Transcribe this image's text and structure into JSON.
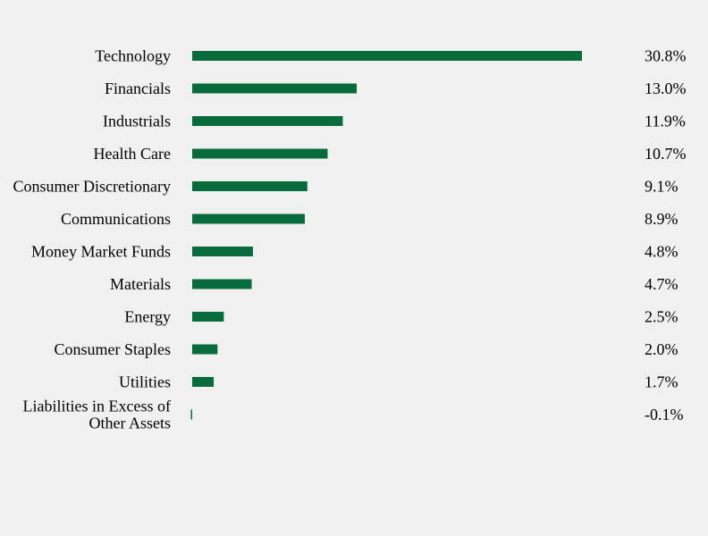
{
  "chart_data": {
    "type": "bar",
    "orientation": "horizontal",
    "categories": [
      "Technology",
      "Financials",
      "Industrials",
      "Health Care",
      "Consumer Discretionary",
      "Communications",
      "Money Market Funds",
      "Materials",
      "Energy",
      "Consumer Staples",
      "Utilities",
      "Liabilities in Excess of Other Assets"
    ],
    "values": [
      30.8,
      13.0,
      11.9,
      10.7,
      9.1,
      8.9,
      4.8,
      4.7,
      2.5,
      2.0,
      1.7,
      -0.1
    ],
    "value_labels": [
      "30.8%",
      "13.0%",
      "11.9%",
      "10.7%",
      "9.1%",
      "8.9%",
      "4.8%",
      "4.7%",
      "2.5%",
      "2.0%",
      "1.7%",
      "-0.1%"
    ],
    "title": "",
    "xlabel": "",
    "ylabel": "",
    "xlim": [
      0,
      30.8
    ],
    "grid": false,
    "legend": "none",
    "bar_color": "#076b3c"
  }
}
